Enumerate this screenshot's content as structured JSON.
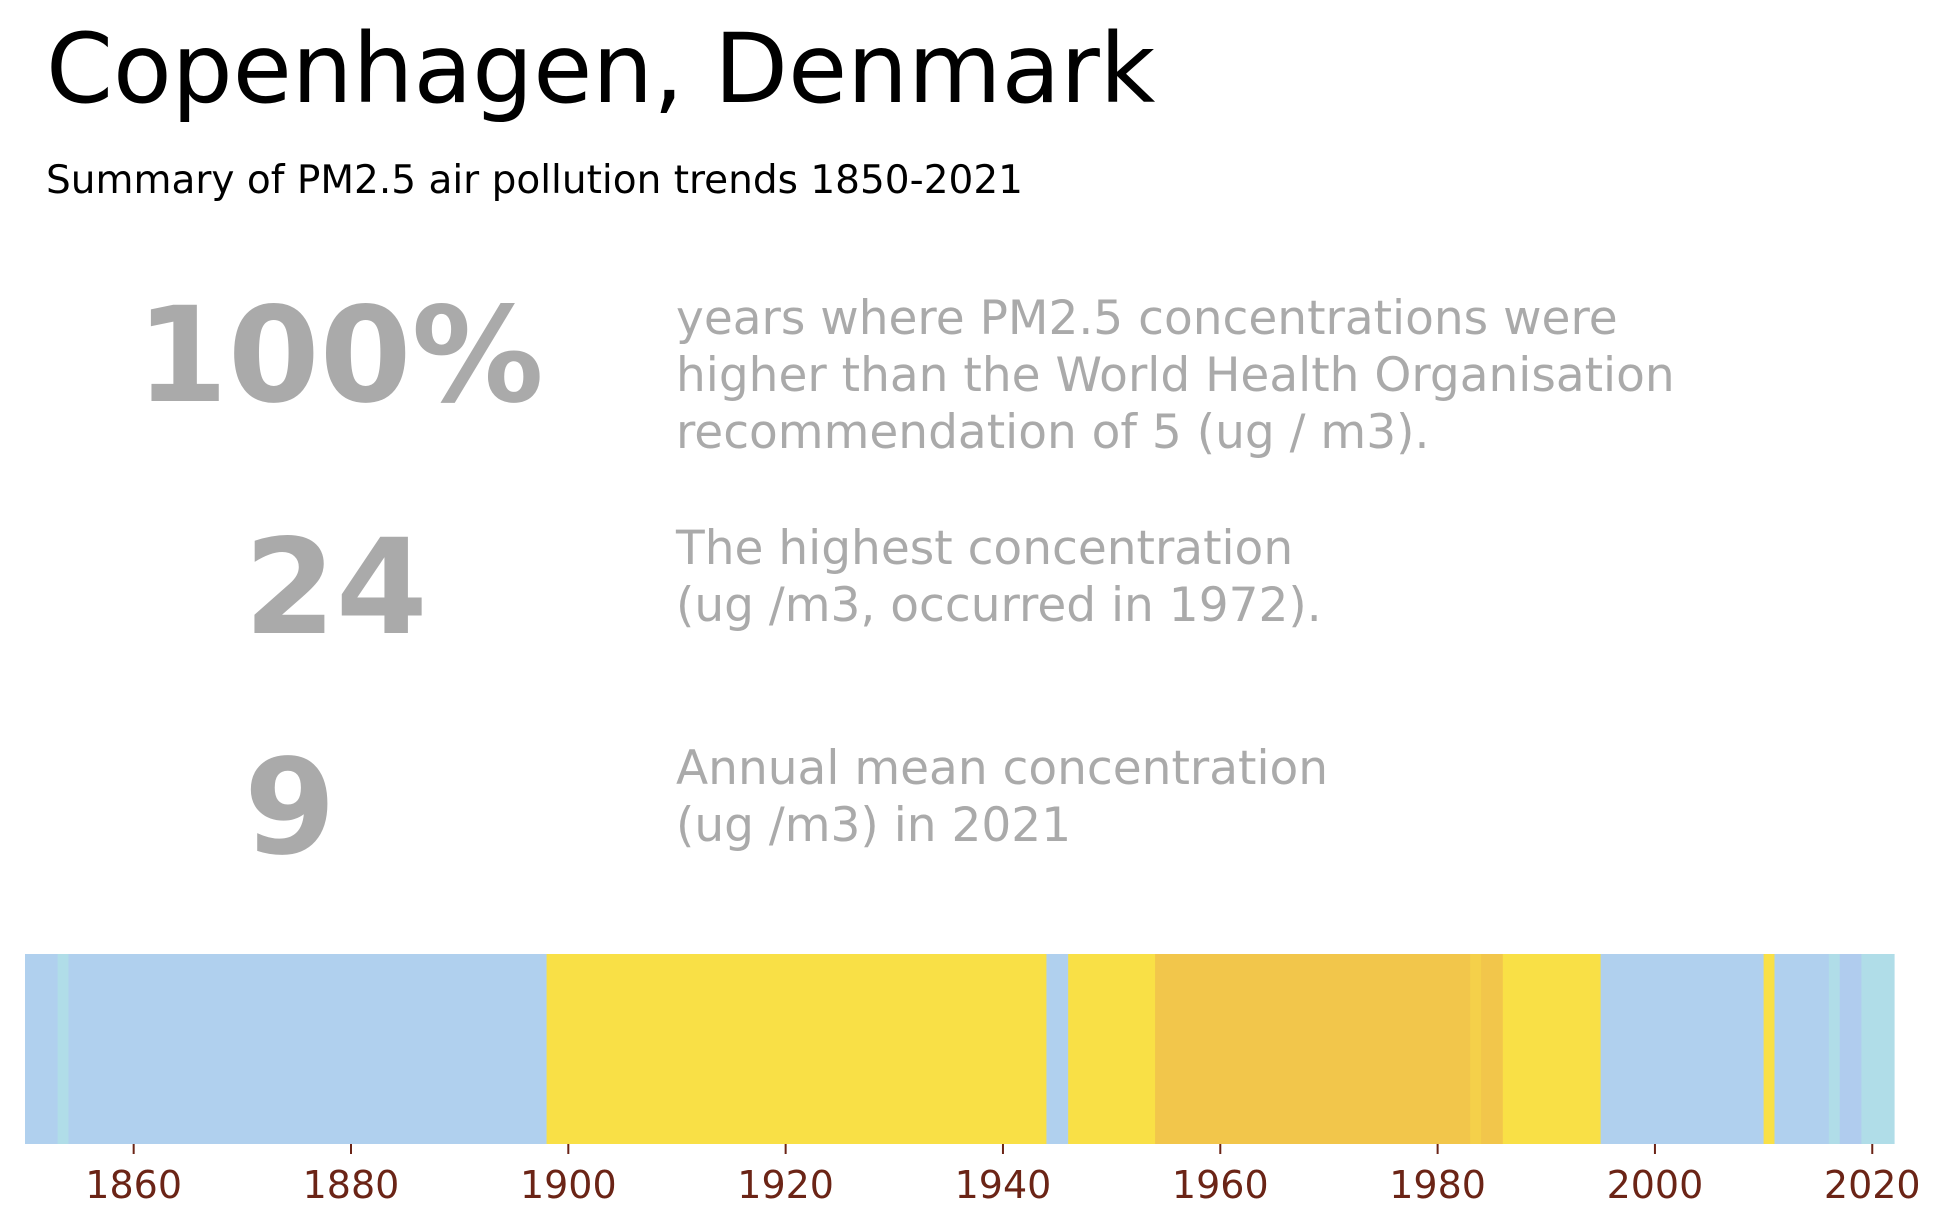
{
  "header": {
    "title": "Copenhagen, Denmark",
    "subtitle": "Summary of PM2.5 air pollution trends 1850-2021"
  },
  "stats": [
    {
      "value": "100%",
      "desc": [
        "years where PM2.5 concentrations were",
        "higher than the World Health Organisation",
        "recommendation of 5 (ug / m3)."
      ]
    },
    {
      "value": "24",
      "desc": [
        "The highest concentration",
        "(ug /m3, occurred in 1972)."
      ]
    },
    {
      "value": "9",
      "desc": [
        "Annual mean concentration",
        "(ug /m3) in 2021"
      ]
    }
  ],
  "chart_data": {
    "type": "heatmap",
    "xlim": [
      1850,
      2022
    ],
    "xticks": [
      "1860",
      "1880",
      "1900",
      "1920",
      "1940",
      "1960",
      "1980",
      "2000",
      "2020"
    ],
    "grid": false,
    "legend": "none",
    "bands": [
      {
        "start": 1850,
        "end": 1853,
        "color": "#b0d0ee"
      },
      {
        "start": 1853,
        "end": 1854,
        "color": "#b0dde8"
      },
      {
        "start": 1854,
        "end": 1898,
        "color": "#b0d0ee"
      },
      {
        "start": 1898,
        "end": 1944,
        "color": "#f9e046"
      },
      {
        "start": 1944,
        "end": 1946,
        "color": "#b0d0ee"
      },
      {
        "start": 1946,
        "end": 1954,
        "color": "#f9e046"
      },
      {
        "start": 1954,
        "end": 1983,
        "color": "#f2c64b"
      },
      {
        "start": 1983,
        "end": 1984,
        "color": "#f5d04a"
      },
      {
        "start": 1984,
        "end": 1986,
        "color": "#f2c64b"
      },
      {
        "start": 1986,
        "end": 1995,
        "color": "#f9e046"
      },
      {
        "start": 1995,
        "end": 2010,
        "color": "#b0d0ee"
      },
      {
        "start": 2010,
        "end": 2011,
        "color": "#f9e046"
      },
      {
        "start": 2011,
        "end": 2016,
        "color": "#b0d0ee"
      },
      {
        "start": 2016,
        "end": 2017,
        "color": "#b0dde8"
      },
      {
        "start": 2017,
        "end": 2019,
        "color": "#b0ccee"
      },
      {
        "start": 2019,
        "end": 2022,
        "color": "#b0dde8"
      }
    ]
  }
}
